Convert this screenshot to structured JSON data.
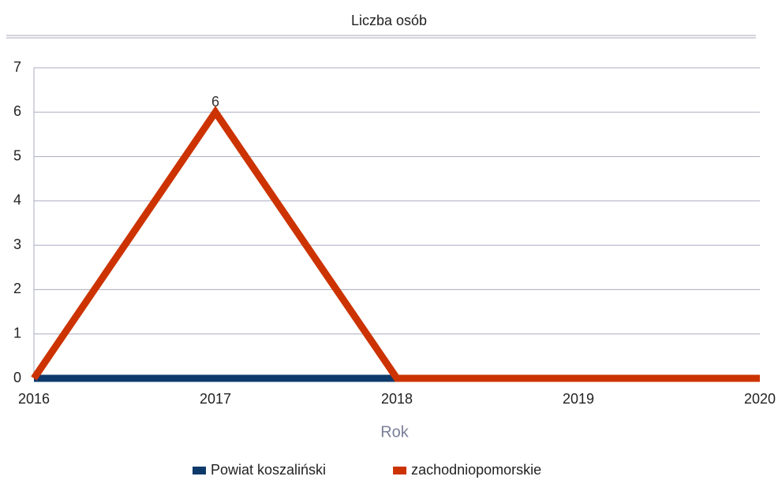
{
  "chart_data": {
    "type": "line",
    "title": "Liczba osób",
    "x_label": "Rok",
    "x": [
      2016,
      2017,
      2018,
      2019,
      2020
    ],
    "series": [
      {
        "name": "Powiat koszaliński",
        "color": "#0e3a6b",
        "values": [
          0,
          0,
          0,
          null,
          null
        ]
      },
      {
        "name": "zachodniopomorskie",
        "color": "#cc3300",
        "values": [
          0,
          6,
          0,
          0,
          0
        ]
      }
    ],
    "xlim": [
      2016,
      2020
    ],
    "xticks": [
      2016,
      2017,
      2018,
      2019,
      2020
    ],
    "ylim": [
      0,
      7
    ],
    "yticks": [
      0,
      1,
      2,
      3,
      4,
      5,
      6,
      7
    ],
    "grid": true,
    "legend": "bottom"
  }
}
